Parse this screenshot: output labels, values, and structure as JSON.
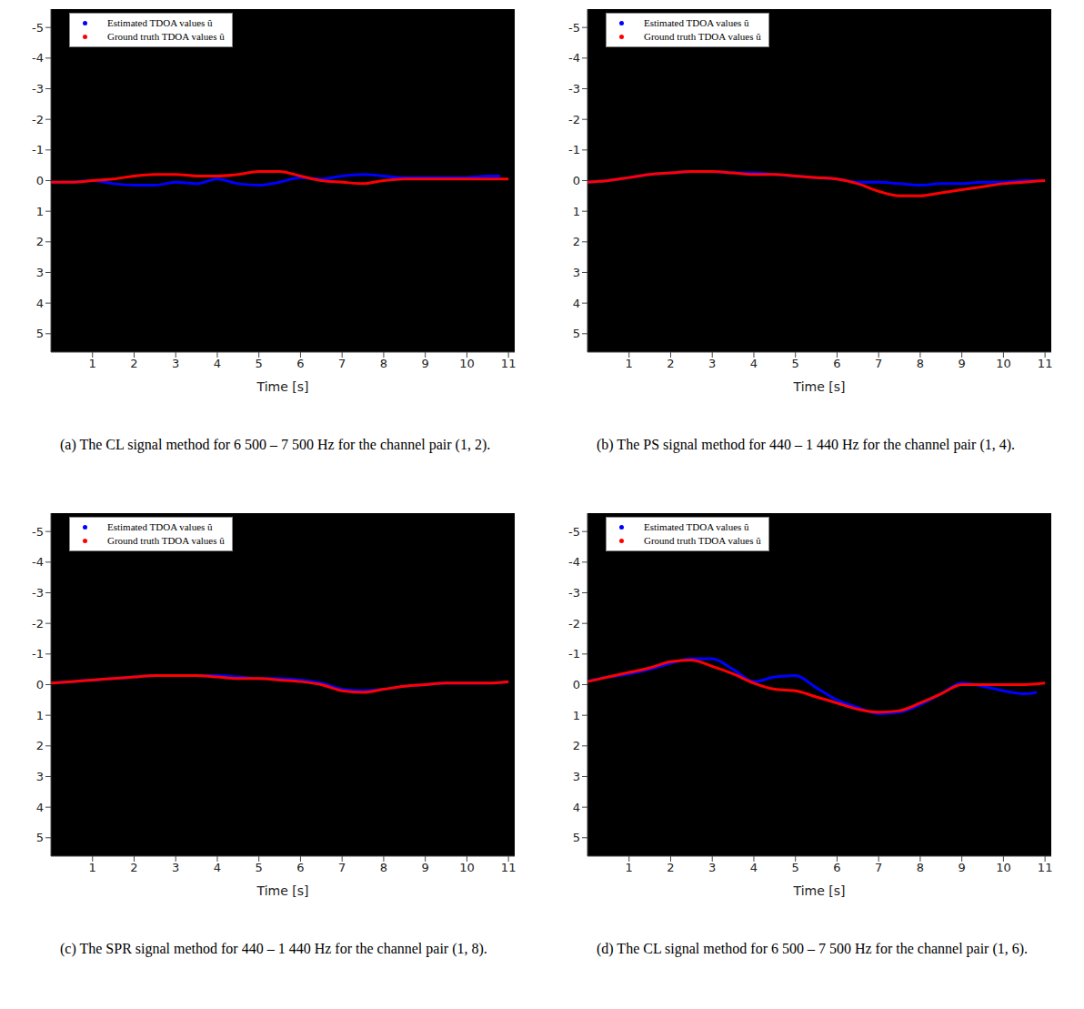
{
  "chart_data": [
    {
      "type": "line",
      "title": "(a) The CL signal method for 6 500 – 7 500 Hz for the channel pair (1, 2).",
      "x_label": "Time [s]",
      "xlim": [
        0,
        11.15
      ],
      "xticks": [
        1,
        2,
        3,
        4,
        5,
        6,
        7,
        8,
        9,
        10,
        11
      ],
      "ylim": [
        -5.6,
        5.6
      ],
      "yticks": [
        -5,
        -4,
        -3,
        -2,
        -1,
        0,
        1,
        2,
        3,
        4,
        5
      ],
      "grid": false,
      "legend": "upper left",
      "series": [
        {
          "name": "Estimated TDOA values û",
          "color": "#0000ff",
          "x": [
            0,
            0.5,
            1,
            1.5,
            2,
            2.5,
            3,
            3.5,
            4,
            4.5,
            5,
            5.5,
            6,
            6.5,
            7,
            7.5,
            8,
            8.5,
            9,
            9.5,
            10,
            10.5,
            10.8
          ],
          "values": [
            0.05,
            0.05,
            0,
            0.1,
            0.15,
            0.15,
            0.05,
            0.1,
            -0.05,
            0.1,
            0.15,
            0.05,
            -0.1,
            -0.05,
            -0.15,
            -0.2,
            -0.15,
            -0.1,
            -0.1,
            -0.1,
            -0.1,
            -0.15,
            -0.15
          ]
        },
        {
          "name": "Ground truth TDOA values û",
          "color": "#ff0000",
          "x": [
            0,
            0.5,
            1,
            1.5,
            2,
            2.5,
            3,
            3.5,
            4,
            4.5,
            5,
            5.5,
            6,
            6.5,
            7,
            7.5,
            8,
            8.5,
            9,
            9.5,
            10,
            10.5,
            11
          ],
          "values": [
            0.05,
            0.05,
            0,
            -0.05,
            -0.15,
            -0.2,
            -0.2,
            -0.15,
            -0.15,
            -0.2,
            -0.3,
            -0.3,
            -0.15,
            0,
            0.05,
            0.1,
            0,
            -0.05,
            -0.05,
            -0.05,
            -0.05,
            -0.05,
            -0.05
          ]
        }
      ]
    },
    {
      "type": "line",
      "title": "(b) The PS signal method for 440 – 1 440 Hz for the channel pair (1, 4).",
      "x_label": "Time [s]",
      "xlim": [
        0,
        11.15
      ],
      "xticks": [
        1,
        2,
        3,
        4,
        5,
        6,
        7,
        8,
        9,
        10,
        11
      ],
      "ylim": [
        -5.6,
        5.6
      ],
      "yticks": [
        -5,
        -4,
        -3,
        -2,
        -1,
        0,
        1,
        2,
        3,
        4,
        5
      ],
      "grid": false,
      "legend": "upper left",
      "series": [
        {
          "name": "Estimated TDOA values û",
          "color": "#0000ff",
          "x": [
            0,
            0.5,
            1,
            1.5,
            2,
            2.5,
            3,
            3.5,
            4,
            4.5,
            5,
            5.5,
            6,
            6.5,
            7,
            7.5,
            8,
            8.5,
            9,
            9.5,
            10,
            10.5,
            11
          ],
          "values": [
            0.05,
            0,
            -0.1,
            -0.2,
            -0.25,
            -0.3,
            -0.3,
            -0.25,
            -0.25,
            -0.2,
            -0.15,
            -0.1,
            -0.05,
            0.05,
            0.05,
            0.1,
            0.15,
            0.1,
            0.1,
            0.05,
            0.05,
            0,
            0
          ]
        },
        {
          "name": "Ground truth TDOA values û",
          "color": "#ff0000",
          "x": [
            0,
            0.5,
            1,
            1.5,
            2,
            2.5,
            3,
            3.5,
            4,
            4.5,
            5,
            5.5,
            6,
            6.5,
            7,
            7.5,
            8,
            8.5,
            9,
            9.5,
            10,
            10.5,
            11
          ],
          "values": [
            0.05,
            0,
            -0.1,
            -0.2,
            -0.25,
            -0.3,
            -0.3,
            -0.25,
            -0.2,
            -0.2,
            -0.15,
            -0.1,
            -0.05,
            0.1,
            0.35,
            0.5,
            0.5,
            0.4,
            0.3,
            0.2,
            0.1,
            0.05,
            0
          ]
        }
      ]
    },
    {
      "type": "line",
      "title": "(c) The SPR signal method for 440 – 1 440 Hz for the channel pair (1, 8).",
      "x_label": "Time [s]",
      "xlim": [
        0,
        11.15
      ],
      "xticks": [
        1,
        2,
        3,
        4,
        5,
        6,
        7,
        8,
        9,
        10,
        11
      ],
      "ylim": [
        -5.6,
        5.6
      ],
      "yticks": [
        -5,
        -4,
        -3,
        -2,
        -1,
        0,
        1,
        2,
        3,
        4,
        5
      ],
      "grid": false,
      "legend": "upper left",
      "series": [
        {
          "name": "Estimated TDOA values û",
          "color": "#0000ff",
          "x": [
            0,
            0.5,
            1,
            1.5,
            2,
            2.5,
            3,
            3.5,
            4,
            4.5,
            5,
            5.5,
            6,
            6.5,
            7,
            7.5,
            8,
            8.5,
            9,
            9.5,
            10,
            10.5,
            11
          ],
          "values": [
            -0.05,
            -0.1,
            -0.15,
            -0.2,
            -0.25,
            -0.3,
            -0.3,
            -0.3,
            -0.3,
            -0.25,
            -0.2,
            -0.2,
            -0.15,
            -0.05,
            0.15,
            0.2,
            0.15,
            0.05,
            0,
            -0.05,
            -0.05,
            -0.05,
            -0.1
          ]
        },
        {
          "name": "Ground truth TDOA values û",
          "color": "#ff0000",
          "x": [
            0,
            0.5,
            1,
            1.5,
            2,
            2.5,
            3,
            3.5,
            4,
            4.5,
            5,
            5.5,
            6,
            6.5,
            7,
            7.5,
            8,
            8.5,
            9,
            9.5,
            10,
            10.5,
            11
          ],
          "values": [
            -0.05,
            -0.1,
            -0.15,
            -0.2,
            -0.25,
            -0.3,
            -0.3,
            -0.3,
            -0.25,
            -0.2,
            -0.2,
            -0.15,
            -0.1,
            0,
            0.2,
            0.25,
            0.15,
            0.05,
            0,
            -0.05,
            -0.05,
            -0.05,
            -0.1
          ]
        }
      ]
    },
    {
      "type": "line",
      "title": "(d) The CL signal method for 6 500 – 7 500 Hz for the channel pair (1, 6).",
      "x_label": "Time [s]",
      "xlim": [
        0,
        11.15
      ],
      "xticks": [
        1,
        2,
        3,
        4,
        5,
        6,
        7,
        8,
        9,
        10,
        11
      ],
      "ylim": [
        -5.6,
        5.6
      ],
      "yticks": [
        -5,
        -4,
        -3,
        -2,
        -1,
        0,
        1,
        2,
        3,
        4,
        5
      ],
      "grid": false,
      "legend": "upper left",
      "series": [
        {
          "name": "Estimated TDOA values û",
          "color": "#0000ff",
          "x": [
            0,
            0.5,
            1,
            1.5,
            2,
            2.5,
            3,
            3.5,
            4,
            4.5,
            5,
            5.5,
            6,
            6.5,
            7,
            7.5,
            8,
            8.5,
            9,
            9.5,
            10,
            10.5,
            10.8
          ],
          "values": [
            -0.1,
            -0.25,
            -0.35,
            -0.5,
            -0.7,
            -0.85,
            -0.85,
            -0.5,
            -0.1,
            -0.25,
            -0.3,
            0.1,
            0.5,
            0.75,
            0.95,
            0.9,
            0.65,
            0.3,
            -0.05,
            0.05,
            0.2,
            0.3,
            0.25
          ]
        },
        {
          "name": "Ground truth TDOA values û",
          "color": "#ff0000",
          "x": [
            0,
            0.5,
            1,
            1.5,
            2,
            2.5,
            3,
            3.5,
            4,
            4.5,
            5,
            5.5,
            6,
            6.5,
            7,
            7.5,
            8,
            8.5,
            9,
            9.5,
            10,
            10.5,
            11
          ],
          "values": [
            -0.1,
            -0.25,
            -0.4,
            -0.55,
            -0.75,
            -0.8,
            -0.6,
            -0.35,
            -0.05,
            0.15,
            0.2,
            0.4,
            0.6,
            0.8,
            0.9,
            0.85,
            0.6,
            0.3,
            0,
            0,
            0,
            0,
            -0.05
          ]
        }
      ]
    }
  ]
}
